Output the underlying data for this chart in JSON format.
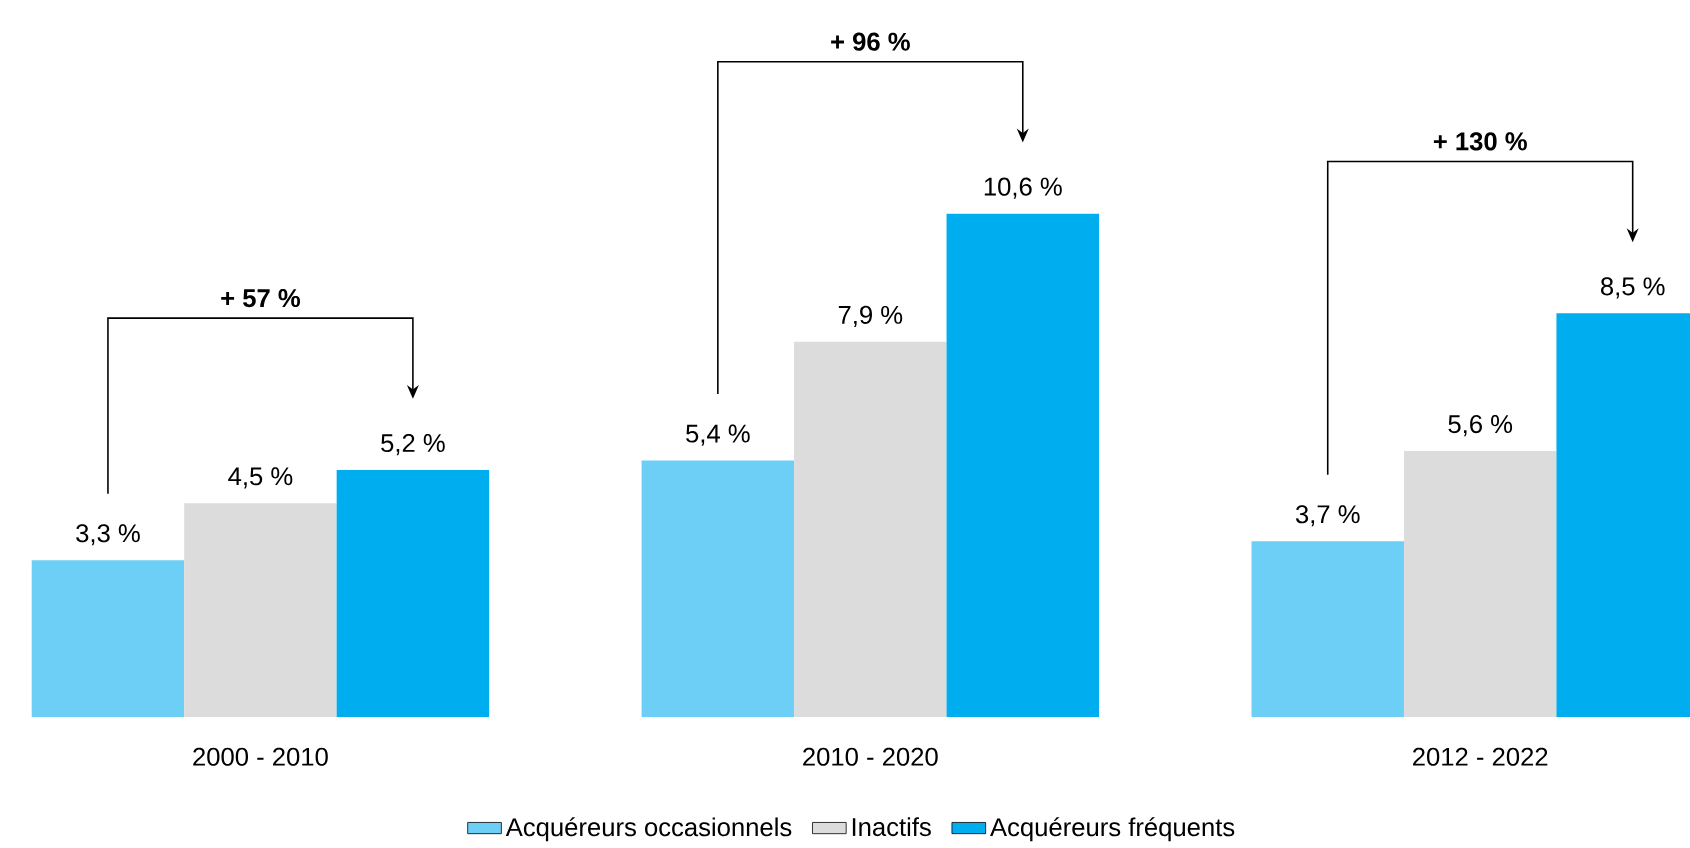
{
  "chart_data": {
    "type": "bar",
    "categories": [
      "2000 - 2010",
      "2010 - 2020",
      "2012 - 2022"
    ],
    "series": [
      {
        "name": "Acquéreurs occasionnels",
        "color": "#6dcff6",
        "values": [
          3.3,
          5.4,
          3.7
        ],
        "value_labels": [
          "3,3 %",
          "5,4 %",
          "3,7 %"
        ]
      },
      {
        "name": "Inactifs",
        "color": "#dcdcdc",
        "values": [
          4.5,
          7.9,
          5.6
        ],
        "value_labels": [
          "4,5 %",
          "7,9 %",
          "5,6 %"
        ]
      },
      {
        "name": "Acquéreurs fréquents",
        "color": "#00aeef",
        "values": [
          5.2,
          10.6,
          8.5
        ],
        "value_labels": [
          "5,2 %",
          "10,6 %",
          "8,5 %"
        ]
      }
    ],
    "annotations": [
      "+ 57 %",
      "+ 96 %",
      "+ 130 %"
    ],
    "legend": "bottom"
  }
}
